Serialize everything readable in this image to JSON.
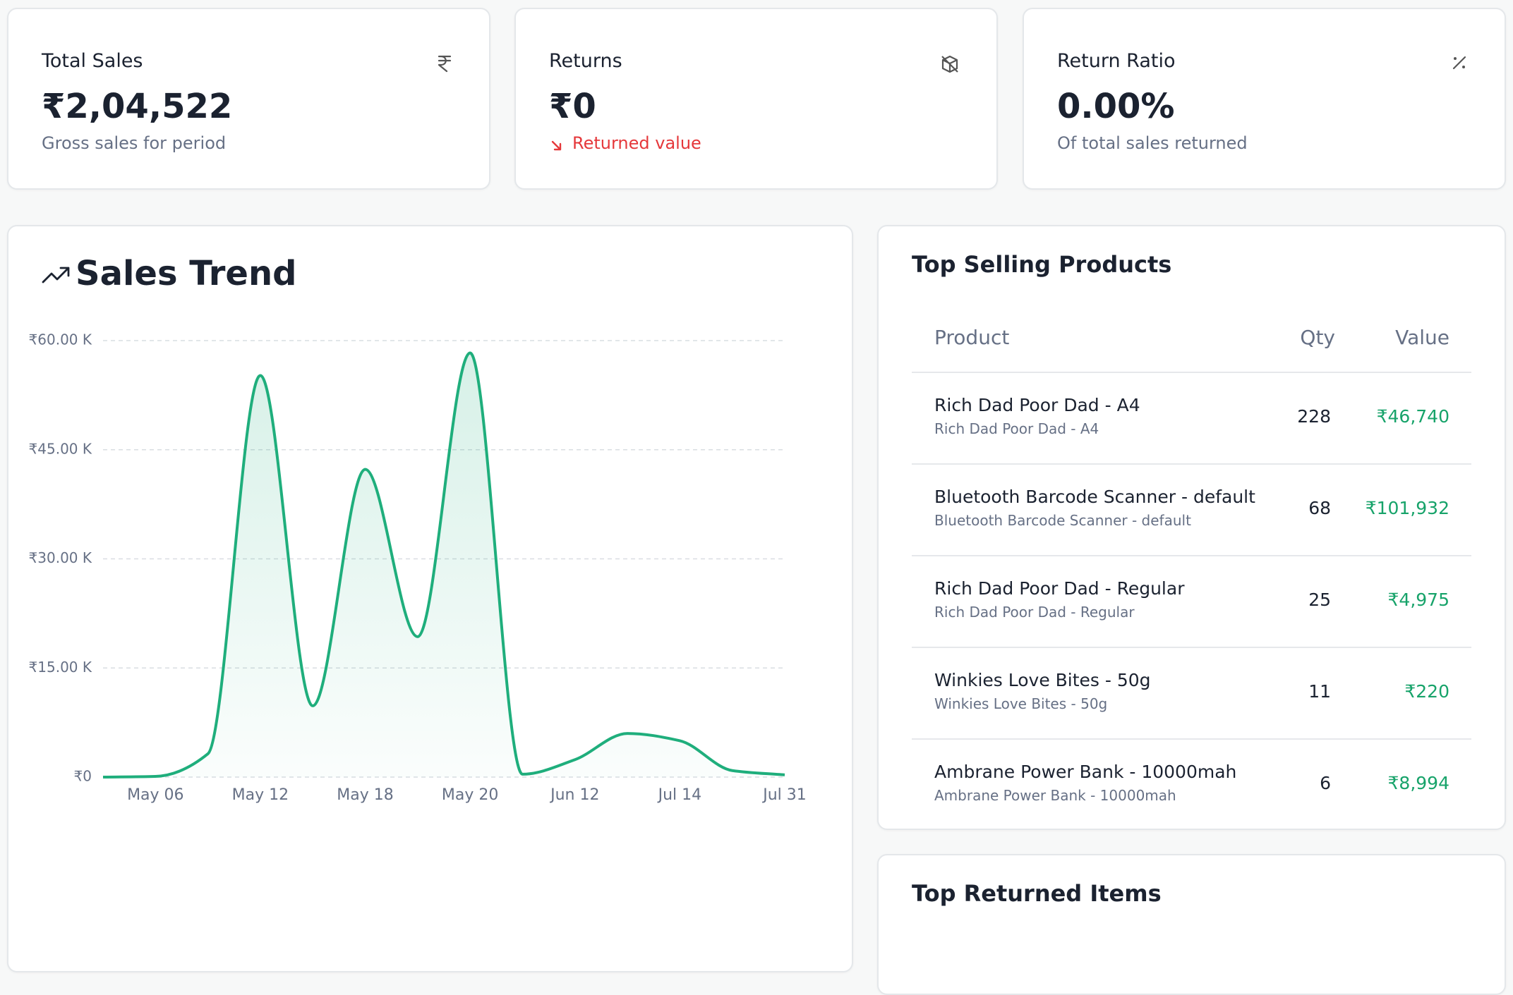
{
  "cards": [
    {
      "title": "Total Sales",
      "value": "₹2,04,522",
      "subtitle": "Gross sales for period"
    },
    {
      "title": "Returns",
      "value": "₹0",
      "subtitle": "Returned value"
    },
    {
      "title": "Return Ratio",
      "value": "0.00%",
      "subtitle": "Of total sales returned"
    }
  ],
  "chart_data": {
    "type": "line",
    "title": "Sales Trend",
    "categories": [
      null,
      "May 06",
      null,
      "May 12",
      null,
      "May 18",
      null,
      "May 20",
      null,
      "Jun 12",
      null,
      "Jul 14",
      null,
      "Jul 31"
    ],
    "values": [
      0,
      100,
      3200,
      55200,
      9800,
      42300,
      19300,
      58300,
      400,
      2400,
      6000,
      5000,
      900,
      300
    ],
    "color": "#1fae7c",
    "ylim": [
      0,
      60000
    ],
    "yticks": [
      {
        "value": 0,
        "label": "₹0"
      },
      {
        "value": 15000,
        "label": "₹15.00 K"
      },
      {
        "value": 30000,
        "label": "₹30.00 K"
      },
      {
        "value": 45000,
        "label": "₹45.00 K"
      },
      {
        "value": 60000,
        "label": "₹60.00 K"
      }
    ],
    "grid": true
  },
  "top_selling": {
    "title": "Top Selling Products",
    "columns": [
      "Product",
      "Qty",
      "Value"
    ],
    "rows": [
      {
        "product": "Rich Dad Poor Dad - A4",
        "variant": "Rich Dad Poor Dad - A4",
        "qty": 228,
        "value": "₹46,740"
      },
      {
        "product": "Bluetooth Barcode Scanner - default",
        "variant": "Bluetooth Barcode Scanner - default",
        "qty": 68,
        "value": "₹101,932"
      },
      {
        "product": "Rich Dad Poor Dad - Regular",
        "variant": "Rich Dad Poor Dad - Regular",
        "qty": 25,
        "value": "₹4,975"
      },
      {
        "product": "Winkies Love Bites - 50g",
        "variant": "Winkies Love Bites - 50g",
        "qty": 11,
        "value": "₹220"
      },
      {
        "product": "Ambrane Power Bank - 10000mah",
        "variant": "Ambrane Power Bank - 10000mah",
        "qty": 6,
        "value": "₹8,994"
      }
    ]
  },
  "top_returned": {
    "title": "Top Returned Items"
  }
}
